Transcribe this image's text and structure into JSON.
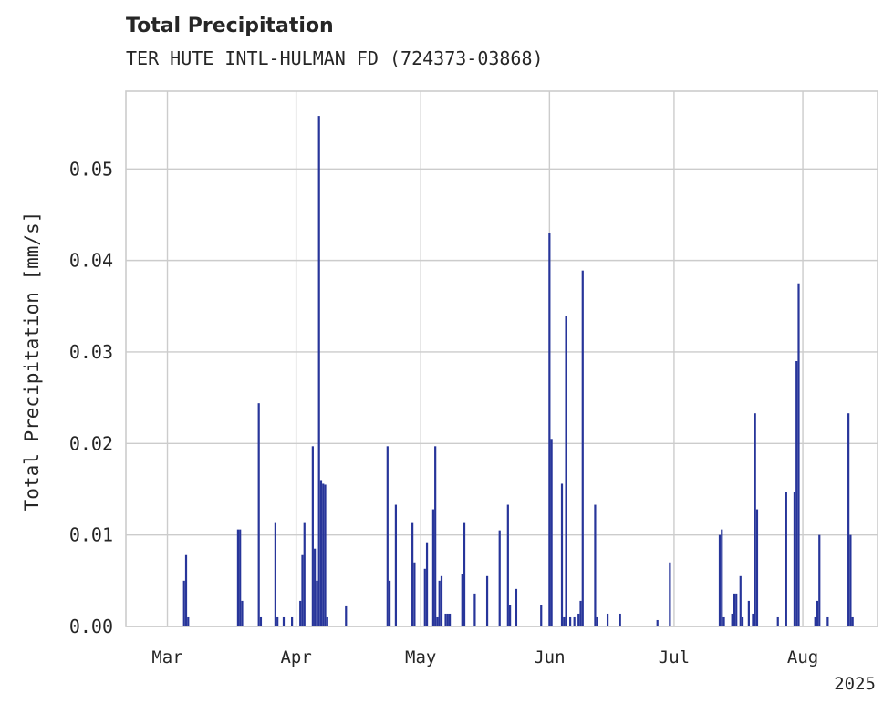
{
  "chart_data": {
    "type": "bar",
    "title": "Total Precipitation",
    "subtitle": "TER HUTE INTL-HULMAN FD (724373-03868)",
    "xlabel": "",
    "ylabel": "Total Precipitation [mm/s]",
    "xlim": [
      "2025-02-19",
      "2025-08-19"
    ],
    "ylim": [
      0,
      0.0585
    ],
    "grid": true,
    "legend": "none",
    "bar_color": "#27359a",
    "yticks": [
      0.0,
      0.01,
      0.02,
      0.03,
      0.04,
      0.05
    ],
    "ytick_labels": [
      "0.00",
      "0.01",
      "0.02",
      "0.03",
      "0.04",
      "0.05"
    ],
    "xticks": [
      "2025-03-01",
      "2025-04-01",
      "2025-05-01",
      "2025-06-01",
      "2025-07-01",
      "2025-08-01"
    ],
    "xtick_labels": [
      "Mar",
      "Apr",
      "May",
      "Jun",
      "Jul",
      "Aug"
    ],
    "year_label": "2025",
    "x": [
      "2025-03-05",
      "2025-03-05T12",
      "2025-03-06",
      "2025-03-18",
      "2025-03-18T12",
      "2025-03-19",
      "2025-03-23",
      "2025-03-23T12",
      "2025-03-27",
      "2025-03-27T12",
      "2025-03-29",
      "2025-03-31",
      "2025-04-02",
      "2025-04-02T12",
      "2025-04-03",
      "2025-04-05",
      "2025-04-05T12",
      "2025-04-06",
      "2025-04-06T12",
      "2025-04-07",
      "2025-04-07T12",
      "2025-04-08",
      "2025-04-08T12",
      "2025-04-13",
      "2025-04-23",
      "2025-04-23T12",
      "2025-04-25",
      "2025-04-29",
      "2025-04-29T12",
      "2025-05-02",
      "2025-05-02T12",
      "2025-05-04",
      "2025-05-04T12",
      "2025-05-05",
      "2025-05-05T12",
      "2025-05-06",
      "2025-05-07",
      "2025-05-07T12",
      "2025-05-08",
      "2025-05-11",
      "2025-05-11T12",
      "2025-05-14",
      "2025-05-17",
      "2025-05-20",
      "2025-05-22",
      "2025-05-22T12",
      "2025-05-24",
      "2025-05-30",
      "2025-06-01",
      "2025-06-01T12",
      "2025-06-04",
      "2025-06-04T12",
      "2025-06-05",
      "2025-06-06",
      "2025-06-07",
      "2025-06-08",
      "2025-06-08T12",
      "2025-06-09",
      "2025-06-12",
      "2025-06-12T12",
      "2025-06-15",
      "2025-06-18",
      "2025-06-27",
      "2025-06-30",
      "2025-07-12",
      "2025-07-12T12",
      "2025-07-13",
      "2025-07-15",
      "2025-07-15T12",
      "2025-07-16",
      "2025-07-17",
      "2025-07-17T12",
      "2025-07-19",
      "2025-07-20",
      "2025-07-20T12",
      "2025-07-21",
      "2025-07-26",
      "2025-07-28",
      "2025-07-30",
      "2025-07-30T12",
      "2025-07-31",
      "2025-08-04",
      "2025-08-04T12",
      "2025-08-05",
      "2025-08-07",
      "2025-08-12",
      "2025-08-12T12",
      "2025-08-13"
    ],
    "values": [
      0.005,
      0.0078,
      0.001,
      0.0106,
      0.0106,
      0.0028,
      0.0244,
      0.001,
      0.0114,
      0.001,
      0.001,
      0.001,
      0.0028,
      0.0078,
      0.0114,
      0.0197,
      0.0085,
      0.005,
      0.0558,
      0.016,
      0.0156,
      0.0155,
      0.001,
      0.0022,
      0.0197,
      0.005,
      0.0133,
      0.0114,
      0.007,
      0.0063,
      0.0092,
      0.0128,
      0.0197,
      0.001,
      0.005,
      0.0055,
      0.0014,
      0.0014,
      0.0014,
      0.0057,
      0.0114,
      0.0036,
      0.0055,
      0.0105,
      0.0133,
      0.0023,
      0.0041,
      0.0023,
      0.043,
      0.0205,
      0.0156,
      0.001,
      0.0339,
      0.001,
      0.001,
      0.0014,
      0.0028,
      0.0389,
      0.0133,
      0.001,
      0.0014,
      0.0014,
      0.0007,
      0.007,
      0.01,
      0.0106,
      0.001,
      0.0014,
      0.0036,
      0.0036,
      0.0055,
      0.001,
      0.0028,
      0.0014,
      0.0233,
      0.0128,
      0.001,
      0.0147,
      0.0147,
      0.029,
      0.0375,
      0.001,
      0.0028,
      0.01,
      0.001,
      0.0233,
      0.01,
      0.001
    ]
  }
}
